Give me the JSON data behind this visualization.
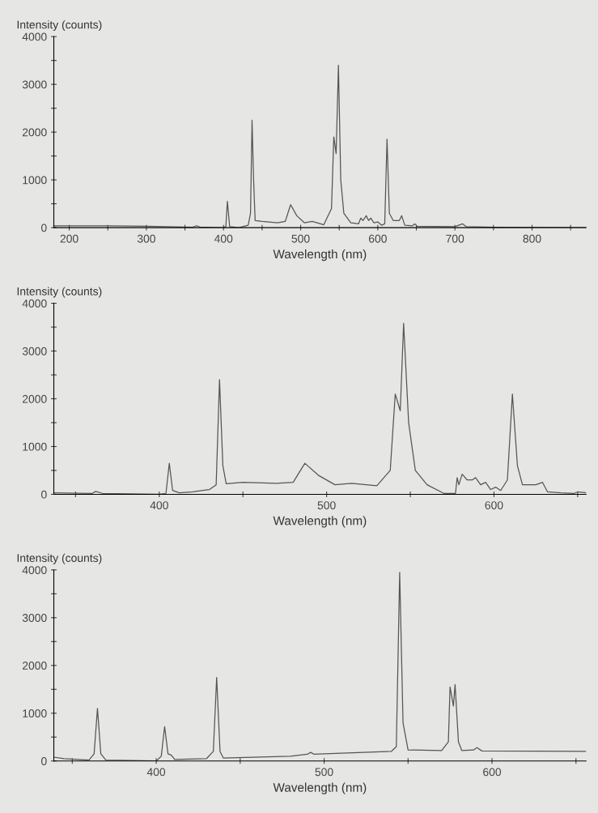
{
  "chart_data": [
    {
      "type": "line",
      "xlabel": "Wavelength (nm)",
      "ylabel": "Intensity (counts)",
      "xlim": [
        180,
        870
      ],
      "ylim": [
        0,
        4000
      ],
      "xticks": [
        200,
        {
          "value": 250,
          "label": null
        },
        300,
        {
          "value": 350,
          "label": null
        },
        400,
        {
          "value": 450,
          "label": null
        },
        500,
        {
          "value": 550,
          "label": null
        },
        600,
        {
          "value": 650,
          "label": null
        },
        700,
        {
          "value": 750,
          "label": null
        },
        800,
        {
          "value": 850,
          "label": null
        }
      ],
      "yticks": [
        0,
        {
          "value": 500,
          "label": null
        },
        1000,
        {
          "value": 1500,
          "label": null
        },
        2000,
        {
          "value": 2500,
          "label": null
        },
        3000,
        {
          "value": 3500,
          "label": null
        },
        4000
      ],
      "grid": false,
      "marker": "none",
      "line_style": "solid",
      "series": [
        {
          "color": "#555555",
          "x": [
            180,
            250,
            300,
            360,
            365,
            370,
            400,
            403,
            405,
            408,
            420,
            432,
            435,
            437,
            439,
            441,
            450,
            470,
            480,
            487,
            495,
            505,
            515,
            530,
            540,
            543,
            546,
            549,
            552,
            556,
            565,
            575,
            578,
            581,
            585,
            588,
            591,
            595,
            600,
            605,
            609,
            612,
            615,
            620,
            628,
            631,
            635,
            645,
            648,
            651,
            700,
            710,
            715,
            750,
            870
          ],
          "values": [
            40,
            40,
            30,
            10,
            40,
            10,
            0,
            20,
            550,
            20,
            0,
            50,
            300,
            2250,
            1000,
            150,
            130,
            100,
            130,
            480,
            250,
            100,
            130,
            60,
            400,
            1900,
            1550,
            3400,
            1000,
            300,
            100,
            80,
            200,
            150,
            250,
            150,
            200,
            100,
            120,
            50,
            80,
            1850,
            300,
            150,
            150,
            250,
            50,
            40,
            80,
            30,
            20,
            80,
            20,
            10,
            0
          ]
        }
      ]
    },
    {
      "type": "line",
      "xlabel": "Wavelength (nm)",
      "ylabel": "Intensity (counts)",
      "xlim": [
        337,
        655
      ],
      "ylim": [
        0,
        4000
      ],
      "xticks": [
        {
          "value": 350,
          "label": null
        },
        400,
        {
          "value": 450,
          "label": null
        },
        500,
        {
          "value": 550,
          "label": null
        },
        600,
        {
          "value": 650,
          "label": null
        }
      ],
      "yticks": [
        0,
        {
          "value": 500,
          "label": null
        },
        1000,
        {
          "value": 1500,
          "label": null
        },
        2000,
        {
          "value": 2500,
          "label": null
        },
        3000,
        {
          "value": 3500,
          "label": null
        },
        4000
      ],
      "grid": false,
      "marker": "none",
      "line_style": "solid",
      "series": [
        {
          "color": "#555555",
          "x": [
            337,
            360,
            362,
            366,
            400,
            404,
            406,
            408,
            412,
            420,
            430,
            434,
            436,
            438,
            440,
            450,
            470,
            480,
            487,
            495,
            505,
            515,
            530,
            538,
            541,
            544,
            546,
            549,
            553,
            560,
            570,
            577,
            578,
            579,
            581,
            584,
            587,
            589,
            592,
            595,
            598,
            601,
            604,
            608,
            611,
            614,
            617,
            625,
            629,
            632,
            640,
            648,
            650,
            655
          ],
          "values": [
            30,
            20,
            60,
            20,
            0,
            20,
            650,
            80,
            30,
            50,
            100,
            200,
            2400,
            600,
            220,
            250,
            230,
            250,
            650,
            400,
            200,
            230,
            180,
            500,
            2100,
            1750,
            3580,
            1500,
            500,
            200,
            20,
            20,
            350,
            200,
            420,
            300,
            300,
            350,
            200,
            250,
            100,
            150,
            80,
            300,
            2100,
            600,
            200,
            200,
            250,
            50,
            30,
            20,
            50,
            30
          ]
        }
      ]
    },
    {
      "type": "line",
      "xlabel": "Wavelength (nm)",
      "ylabel": "Intensity (counts)",
      "xlim": [
        339,
        656
      ],
      "ylim": [
        0,
        4000
      ],
      "xticks": [
        {
          "value": 350,
          "label": null
        },
        400,
        {
          "value": 450,
          "label": null
        },
        500,
        {
          "value": 550,
          "label": null
        },
        600,
        {
          "value": 650,
          "label": null
        }
      ],
      "yticks": [
        0,
        {
          "value": 500,
          "label": null
        },
        1000,
        {
          "value": 1500,
          "label": null
        },
        2000,
        {
          "value": 2500,
          "label": null
        },
        3000,
        {
          "value": 3500,
          "label": null
        },
        4000
      ],
      "grid": false,
      "marker": "none",
      "line_style": "solid",
      "series": [
        {
          "color": "#555555",
          "x": [
            339,
            345,
            360,
            363,
            365,
            367,
            370,
            400,
            403,
            405,
            407,
            409,
            411,
            430,
            434,
            436,
            438,
            440,
            480,
            490,
            492,
            494,
            540,
            543,
            545,
            547,
            550,
            570,
            574,
            575,
            577,
            578,
            580,
            582,
            589,
            591,
            594,
            656
          ],
          "values": [
            80,
            50,
            20,
            150,
            1100,
            150,
            20,
            0,
            100,
            720,
            150,
            120,
            30,
            50,
            200,
            1750,
            200,
            60,
            100,
            140,
            180,
            140,
            200,
            300,
            3950,
            800,
            230,
            220,
            400,
            1550,
            1150,
            1600,
            400,
            220,
            230,
            280,
            210,
            200
          ]
        }
      ]
    }
  ]
}
